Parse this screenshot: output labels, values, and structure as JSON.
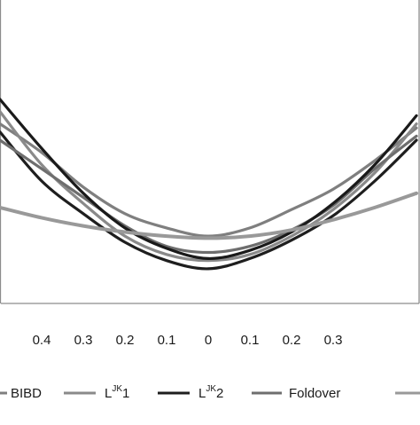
{
  "chart_data": {
    "type": "line",
    "title": "",
    "xlabel": "",
    "ylabel": "",
    "x": [
      -0.5,
      -0.4,
      -0.3,
      -0.2,
      -0.1,
      0,
      0.1,
      0.2,
      0.3,
      0.4,
      0.5
    ],
    "x_tick_labels": [
      "0.4",
      "0.3",
      "0.2",
      "0.1",
      "0",
      "0.1",
      "0.2",
      "0.3"
    ],
    "grid": false,
    "legend_position": "bottom",
    "legend": [
      {
        "label": "BIBD",
        "color": "#7f7f7f"
      },
      {
        "label": "L",
        "sup": "JK",
        "suffix": "1",
        "color": "#8a8a8a"
      },
      {
        "label": "L",
        "sup": "JK",
        "suffix": "2",
        "color": "#1e1e1e"
      },
      {
        "label": "Foldover",
        "color": "#6e6e6e"
      }
    ],
    "series": [
      {
        "name": "BIBD",
        "color": "#7f7f7f",
        "values": [
          0.54,
          0.47,
          0.385,
          0.32,
          0.285,
          0.265,
          0.285,
          0.33,
          0.38,
          0.45,
          0.53
        ]
      },
      {
        "name": "LJK1",
        "color": "#8a8a8a",
        "values": [
          0.57,
          0.44,
          0.345,
          0.265,
          0.22,
          0.205,
          0.22,
          0.265,
          0.33,
          0.42,
          0.54
        ]
      },
      {
        "name": "LJK2",
        "color": "#1e1e1e",
        "values": [
          0.52,
          0.4,
          0.32,
          0.25,
          0.205,
          0.185,
          0.21,
          0.255,
          0.315,
          0.4,
          0.5
        ]
      },
      {
        "name": "Foldover",
        "color": "#6e6e6e",
        "values": [
          0.5,
          0.43,
          0.36,
          0.29,
          0.24,
          0.225,
          0.24,
          0.28,
          0.34,
          0.43,
          0.51
        ]
      },
      {
        "name": "",
        "color": "#1a1a1a",
        "values": [
          0.6,
          0.48,
          0.37,
          0.285,
          0.235,
          0.21,
          0.23,
          0.275,
          0.345,
          0.44,
          0.56
        ]
      },
      {
        "name": "",
        "color": "#999999",
        "values": [
          0.335,
          0.31,
          0.29,
          0.275,
          0.265,
          0.26,
          0.265,
          0.28,
          0.305,
          0.335,
          0.37
        ]
      }
    ],
    "ylim": [
      0.1,
      0.8
    ],
    "xlim": [
      -0.5,
      0.5
    ]
  }
}
